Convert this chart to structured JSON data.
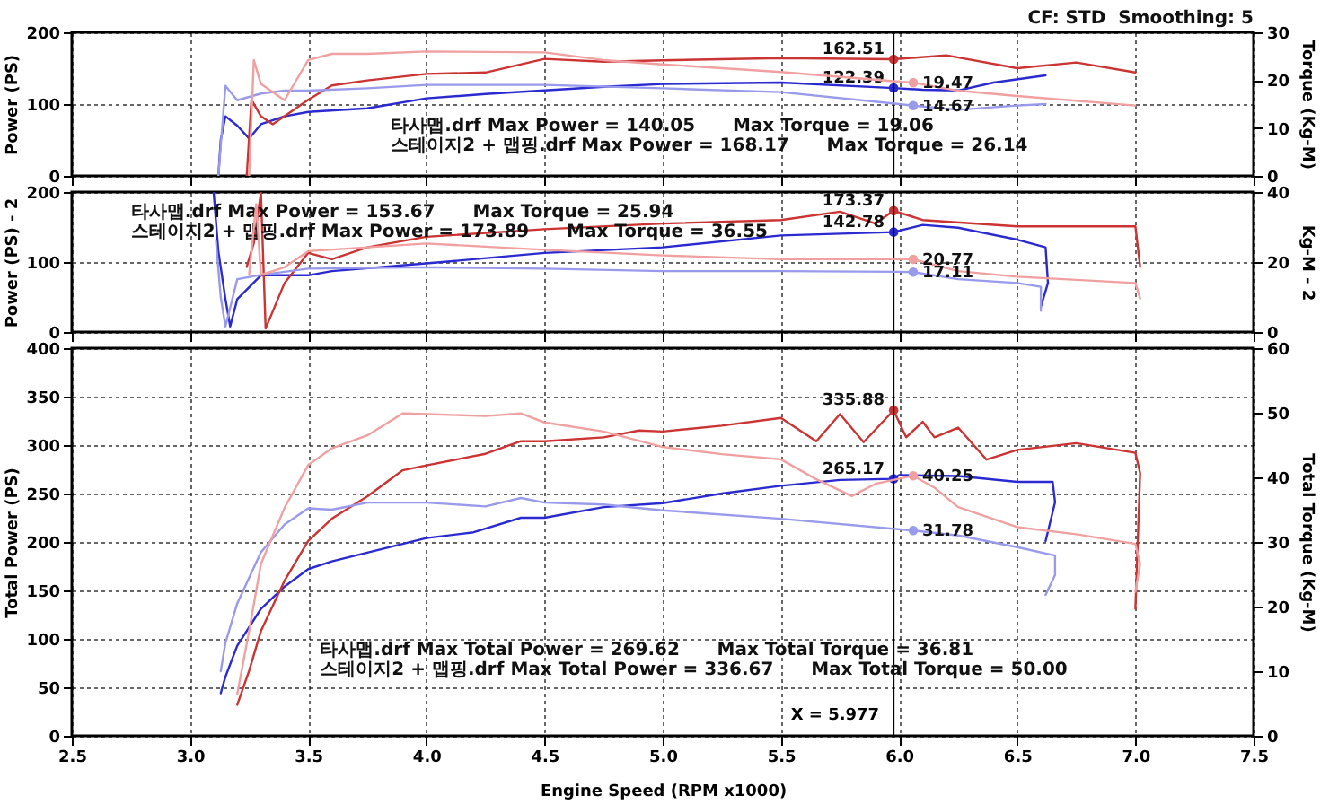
{
  "chart_data": [
    {
      "type": "line",
      "xlim": [
        2.5,
        7.5
      ],
      "xticks": [
        2.5,
        3,
        3.5,
        4,
        4.5,
        5,
        5.5,
        6,
        6.5,
        7,
        7.5
      ],
      "ylim": [
        0,
        200
      ],
      "yticks": [
        0,
        100,
        200
      ],
      "y2lim": [
        0,
        30
      ],
      "y2ticks": [
        0,
        10,
        20,
        30
      ],
      "ylabel": "Power (PS)",
      "y2label": "Torque (Kg-M)",
      "grid": true,
      "tick_labels": "y",
      "annotations": [
        "CF: STD  Smoothing: 5",
        "타사맵.drf Max Power = 140.05      Max Torque = 19.06",
        "스테이지2 + 맵핑.drf Max Power = 168.17      Max Torque = 26.14"
      ],
      "ref_lines": [
        {
          "axis": "x",
          "value": 5.977
        }
      ],
      "series": [
        {
          "color": "#2a2ad0",
          "x": [
            3.12,
            3.13,
            3.15,
            3.2,
            3.25,
            3.3,
            3.4,
            3.5,
            3.75,
            4.0,
            4.25,
            4.5,
            4.75,
            5.0,
            5.5,
            5.977,
            6.1,
            6.25,
            6.4,
            6.62
          ],
          "values": [
            0,
            50,
            83,
            70,
            52,
            72,
            83,
            89,
            94,
            108,
            114,
            119,
            124,
            128,
            130,
            122.39,
            120,
            119,
            130,
            140
          ],
          "value_labels": [
            null,
            null,
            null,
            null,
            null,
            null,
            null,
            null,
            null,
            null,
            null,
            null,
            null,
            null,
            null,
            "122.39",
            null,
            null,
            null,
            null
          ]
        },
        {
          "color": "#9a9aec",
          "axis": "y2",
          "x": [
            3.12,
            3.15,
            3.2,
            3.3,
            3.4,
            3.5,
            3.75,
            4.0,
            4.5,
            5.0,
            5.5,
            6.0,
            6.06,
            6.25,
            6.5,
            6.62
          ],
          "values": [
            0,
            18.8,
            15.8,
            17.2,
            17.8,
            17.8,
            18.3,
            19,
            19,
            18.3,
            17.5,
            15,
            14.67,
            13.8,
            14.7,
            15
          ],
          "value_labels": [
            null,
            null,
            null,
            null,
            null,
            null,
            null,
            null,
            null,
            null,
            null,
            null,
            "14.67",
            null,
            null,
            null
          ]
        },
        {
          "color": "#cc3333",
          "x": [
            3.24,
            3.26,
            3.3,
            3.35,
            3.4,
            3.5,
            3.6,
            3.75,
            4.0,
            4.25,
            4.5,
            4.75,
            5.0,
            5.5,
            5.977,
            6.2,
            6.5,
            6.75,
            7.0
          ],
          "values": [
            0,
            106,
            83,
            72,
            83,
            106,
            126,
            133,
            142,
            144,
            163,
            159,
            161,
            164,
            162.51,
            168,
            150,
            158,
            144
          ],
          "value_labels": [
            null,
            null,
            null,
            null,
            null,
            null,
            null,
            null,
            null,
            null,
            null,
            null,
            null,
            null,
            "162.51",
            null,
            null,
            null,
            null
          ]
        },
        {
          "color": "#f0a0a0",
          "axis": "y2",
          "x": [
            3.25,
            3.27,
            3.3,
            3.4,
            3.5,
            3.6,
            3.75,
            4.0,
            4.5,
            4.75,
            5.0,
            5.5,
            6.0,
            6.06,
            6.25,
            6.5,
            7.0
          ],
          "values": [
            0,
            24.2,
            19.2,
            15.8,
            24.2,
            25.5,
            25.5,
            26,
            25.8,
            24.2,
            23.3,
            21.7,
            19.7,
            19.47,
            17.8,
            16.7,
            14.7
          ],
          "value_labels": [
            null,
            null,
            null,
            null,
            null,
            null,
            null,
            null,
            null,
            null,
            null,
            null,
            null,
            "19.47",
            null,
            null,
            null
          ]
        }
      ]
    },
    {
      "type": "line",
      "xlim": [
        2.5,
        7.5
      ],
      "xticks": [
        2.5,
        3,
        3.5,
        4,
        4.5,
        5,
        5.5,
        6,
        6.5,
        7,
        7.5
      ],
      "ylim": [
        0,
        200
      ],
      "yticks": [
        0,
        100,
        200
      ],
      "y2lim": [
        0,
        40
      ],
      "y2ticks": [
        0,
        20,
        40
      ],
      "ylabel": "Power (PS) - 2",
      "y2label": "Kg-M - 2",
      "grid": true,
      "tick_labels": "y",
      "annotations": [
        "타사맵.drf Max Power = 153.67      Max Torque = 25.94",
        "스테이지2 + 맵핑.drf Max Power = 173.89      Max Torque = 36.55"
      ],
      "ref_lines": [
        {
          "axis": "x",
          "value": 5.977
        }
      ],
      "series": [
        {
          "color": "#2a2ad0",
          "x": [
            3.1,
            3.12,
            3.15,
            3.17,
            3.2,
            3.3,
            3.5,
            3.6,
            4.0,
            4.5,
            5.0,
            5.5,
            5.977,
            6.1,
            6.25,
            6.5,
            6.62,
            6.63,
            6.6
          ],
          "values": [
            200,
            115,
            47,
            8,
            47,
            81,
            81,
            87,
            98,
            113,
            121,
            138,
            142.78,
            153,
            149,
            132,
            121,
            70,
            36
          ],
          "value_labels": [
            null,
            null,
            null,
            null,
            null,
            null,
            null,
            null,
            null,
            null,
            null,
            null,
            "142.78",
            null,
            null,
            null,
            null,
            null,
            null
          ]
        },
        {
          "color": "#9a9aec",
          "axis": "y2",
          "x": [
            3.11,
            3.13,
            3.15,
            3.2,
            3.3,
            3.5,
            4.0,
            4.5,
            5.0,
            5.5,
            6.0,
            6.06,
            6.25,
            6.5,
            6.6,
            6.6
          ],
          "values": [
            25.9,
            10,
            1.6,
            15.1,
            16.3,
            18.1,
            18.5,
            18.1,
            17.4,
            17.4,
            17.2,
            17.11,
            15.1,
            14,
            12.9,
            6.1
          ],
          "value_labels": [
            null,
            null,
            null,
            null,
            null,
            null,
            null,
            null,
            null,
            null,
            null,
            "17.11",
            null,
            null,
            null,
            null
          ]
        },
        {
          "color": "#cc3333",
          "x": [
            3.24,
            3.27,
            3.3,
            3.32,
            3.4,
            3.5,
            3.6,
            3.75,
            4.0,
            4.5,
            5.0,
            5.5,
            5.75,
            5.9,
            5.977,
            6.1,
            6.5,
            7.0,
            7.02
          ],
          "values": [
            93,
            127,
            199,
            5,
            70,
            113,
            104,
            121,
            136,
            147,
            155,
            160,
            172,
            155,
            173.37,
            160,
            151,
            151,
            93
          ],
          "value_labels": [
            null,
            null,
            null,
            null,
            null,
            null,
            null,
            null,
            null,
            null,
            null,
            null,
            null,
            null,
            "173.37",
            null,
            null,
            null,
            null
          ]
        },
        {
          "color": "#f0a0a0",
          "axis": "y2",
          "x": [
            3.25,
            3.28,
            3.3,
            3.4,
            3.5,
            3.75,
            4.0,
            4.5,
            5.0,
            5.5,
            6.0,
            6.06,
            6.25,
            6.5,
            7.0,
            7.02
          ],
          "values": [
            16.3,
            36.5,
            16.3,
            18.5,
            23.1,
            24.2,
            25.3,
            23.5,
            21.9,
            20.8,
            20.8,
            20.77,
            17.4,
            15.8,
            14,
            9.5
          ],
          "value_labels": [
            null,
            null,
            null,
            null,
            null,
            null,
            null,
            null,
            null,
            null,
            null,
            "20.77",
            null,
            null,
            null,
            null
          ]
        }
      ]
    },
    {
      "type": "line",
      "xlim": [
        2.5,
        7.5
      ],
      "xticks": [
        {
          "value": 2.5,
          "label": "2.5"
        },
        {
          "value": 3,
          "label": "3.0"
        },
        {
          "value": 3.5,
          "label": "3.5"
        },
        {
          "value": 4,
          "label": "4.0"
        },
        {
          "value": 4.5,
          "label": "4.5"
        },
        {
          "value": 5,
          "label": "5.0"
        },
        {
          "value": 5.5,
          "label": "5.5"
        },
        {
          "value": 6,
          "label": "6.0"
        },
        {
          "value": 6.5,
          "label": "6.5"
        },
        {
          "value": 7,
          "label": "7.0"
        },
        {
          "value": 7.5,
          "label": "7.5"
        }
      ],
      "ylim": [
        0,
        400
      ],
      "yticks": [
        0,
        50,
        100,
        150,
        200,
        250,
        300,
        350,
        400
      ],
      "y2lim": [
        0,
        60
      ],
      "y2ticks": [
        0,
        10,
        20,
        30,
        40,
        50,
        60
      ],
      "xlabel": "Engine Speed (RPM x1000)",
      "ylabel": "Total Power (PS)",
      "y2label": "Total Torque (Kg-M)",
      "grid": true,
      "annotations": [
        "타사맵.drf Max Total Power = 269.62      Max Total Torque = 36.81",
        "스테이지2 + 맵핑.drf Max Total Power = 336.67      Max Total Torque = 50.00"
      ],
      "ref_lines": [
        {
          "axis": "x",
          "value": 5.977,
          "label": "X = 5.977"
        }
      ],
      "series": [
        {
          "color": "#2a2ad0",
          "x": [
            3.13,
            3.15,
            3.2,
            3.3,
            3.4,
            3.5,
            3.6,
            3.75,
            4.0,
            4.2,
            4.4,
            4.5,
            4.75,
            5.0,
            5.25,
            5.5,
            5.75,
            5.977,
            6.0,
            6.25,
            6.5,
            6.65,
            6.66,
            6.62
          ],
          "values": [
            44,
            61,
            93,
            131,
            154,
            172,
            180,
            189,
            204,
            210,
            225,
            225,
            236,
            240,
            250,
            258,
            264,
            265.17,
            269,
            268,
            262,
            262,
            241,
            201
          ],
          "value_labels": [
            null,
            null,
            null,
            null,
            null,
            null,
            null,
            null,
            null,
            null,
            null,
            null,
            null,
            null,
            null,
            null,
            null,
            "265.17",
            null,
            null,
            null,
            null,
            null,
            null
          ]
        },
        {
          "color": "#9a9aec",
          "axis": "y2",
          "x": [
            3.13,
            3.15,
            3.2,
            3.3,
            3.4,
            3.5,
            3.6,
            3.75,
            4.0,
            4.25,
            4.4,
            4.5,
            4.75,
            5.0,
            5.5,
            6.06,
            6.25,
            6.5,
            6.66,
            6.66,
            6.62
          ],
          "values": [
            10,
            14.4,
            20.5,
            28.4,
            32.7,
            35.2,
            35,
            36.1,
            36.1,
            35.5,
            36.8,
            36.1,
            35.8,
            34.9,
            33.6,
            31.78,
            31,
            29.2,
            27.9,
            24.9,
            21.8
          ],
          "value_labels": [
            null,
            null,
            null,
            null,
            null,
            null,
            null,
            null,
            null,
            null,
            null,
            null,
            null,
            null,
            null,
            "31.78",
            null,
            null,
            null,
            null,
            null
          ]
        },
        {
          "color": "#cc3333",
          "x": [
            3.2,
            3.25,
            3.3,
            3.4,
            3.5,
            3.6,
            3.75,
            3.9,
            4.0,
            4.25,
            4.4,
            4.5,
            4.75,
            4.9,
            5.0,
            5.25,
            5.5,
            5.65,
            5.75,
            5.85,
            5.977,
            6.03,
            6.1,
            6.15,
            6.25,
            6.37,
            6.5,
            6.75,
            7.0,
            7.02,
            7.0
          ],
          "values": [
            32,
            67,
            108,
            160,
            201,
            224,
            247,
            274,
            279,
            291,
            304,
            304,
            308,
            315,
            314,
            320,
            328,
            304,
            332,
            303,
            335.88,
            308,
            324,
            308,
            318,
            285,
            295,
            302,
            292,
            271,
            131
          ],
          "value_labels": [
            null,
            null,
            null,
            null,
            null,
            null,
            null,
            null,
            null,
            null,
            null,
            null,
            null,
            null,
            null,
            null,
            null,
            null,
            null,
            null,
            "335.88",
            null,
            null,
            null,
            null,
            null,
            null,
            null,
            null,
            null,
            null
          ]
        },
        {
          "color": "#f0a0a0",
          "axis": "y2",
          "x": [
            3.2,
            3.25,
            3.3,
            3.4,
            3.5,
            3.6,
            3.75,
            3.9,
            4.0,
            4.25,
            4.4,
            4.5,
            4.75,
            5.0,
            5.25,
            5.5,
            5.65,
            5.8,
            5.9,
            6.06,
            6.15,
            6.25,
            6.5,
            6.75,
            7.0,
            7.02,
            7.0
          ],
          "values": [
            6.5,
            16.2,
            26.6,
            35.3,
            41.9,
            44.5,
            46.5,
            49.9,
            49.8,
            49.5,
            49.9,
            48.5,
            47.1,
            44.7,
            43.6,
            42.8,
            39.7,
            37.1,
            39,
            40.25,
            38.4,
            35.4,
            32.3,
            31.2,
            29.7,
            26.6,
            22.3
          ],
          "value_labels": [
            null,
            null,
            null,
            null,
            null,
            null,
            null,
            null,
            null,
            null,
            null,
            null,
            null,
            null,
            null,
            null,
            null,
            null,
            null,
            "40.25",
            null,
            null,
            null,
            null,
            null,
            null,
            null
          ]
        }
      ]
    }
  ]
}
